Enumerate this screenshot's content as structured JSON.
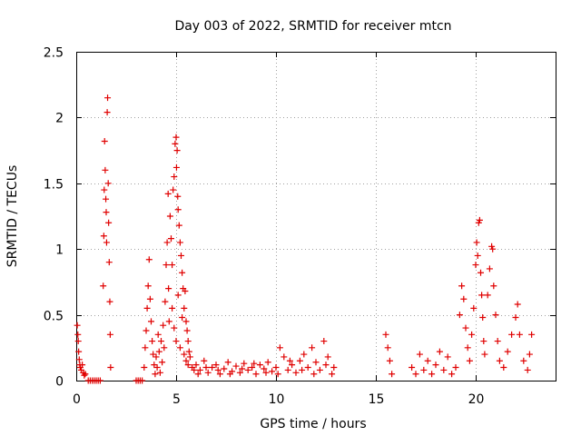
{
  "chart_data": {
    "type": "scatter",
    "title": "Day 003 of 2022, SRMTID for receiver mtcn",
    "xlabel": "GPS time / hours",
    "ylabel": "SRMTID / TECUs",
    "xlim": [
      0,
      24
    ],
    "ylim": [
      0,
      2.5
    ],
    "x_ticks": [
      0,
      5,
      10,
      15,
      20
    ],
    "x_tick_labels": [
      "0",
      "5",
      "10",
      "15",
      "20"
    ],
    "y_ticks": [
      0,
      0.5,
      1,
      1.5,
      2,
      2.5
    ],
    "y_tick_labels": [
      "0",
      "0.5",
      "1",
      "1.5",
      "2",
      "2.5"
    ],
    "grid": true,
    "marker": "+",
    "color": "#e00000",
    "series": [
      {
        "name": "SRMTID",
        "points": [
          [
            0.05,
            0.42
          ],
          [
            0.08,
            0.35
          ],
          [
            0.1,
            0.3
          ],
          [
            0.12,
            0.22
          ],
          [
            0.15,
            0.16
          ],
          [
            0.18,
            0.12
          ],
          [
            0.2,
            0.1
          ],
          [
            0.25,
            0.08
          ],
          [
            0.3,
            0.12
          ],
          [
            0.35,
            0.06
          ],
          [
            0.4,
            0.04
          ],
          [
            0.45,
            0.05
          ],
          [
            0.6,
            0.0
          ],
          [
            0.7,
            0.0
          ],
          [
            0.8,
            0.0
          ],
          [
            0.9,
            0.0
          ],
          [
            1.0,
            0.0
          ],
          [
            1.1,
            0.0
          ],
          [
            1.2,
            0.0
          ],
          [
            1.35,
            0.72
          ],
          [
            1.38,
            1.1
          ],
          [
            1.4,
            1.45
          ],
          [
            1.42,
            1.82
          ],
          [
            1.45,
            1.6
          ],
          [
            1.48,
            1.38
          ],
          [
            1.5,
            1.28
          ],
          [
            1.52,
            1.05
          ],
          [
            1.55,
            2.04
          ],
          [
            1.57,
            2.15
          ],
          [
            1.6,
            1.5
          ],
          [
            1.62,
            1.2
          ],
          [
            1.65,
            0.9
          ],
          [
            1.68,
            0.6
          ],
          [
            1.7,
            0.35
          ],
          [
            1.72,
            0.1
          ],
          [
            3.0,
            0.0
          ],
          [
            3.1,
            0.0
          ],
          [
            3.2,
            0.0
          ],
          [
            3.3,
            0.0
          ],
          [
            3.4,
            0.1
          ],
          [
            3.45,
            0.25
          ],
          [
            3.5,
            0.38
          ],
          [
            3.55,
            0.55
          ],
          [
            3.6,
            0.72
          ],
          [
            3.65,
            0.92
          ],
          [
            3.7,
            0.62
          ],
          [
            3.75,
            0.45
          ],
          [
            3.8,
            0.3
          ],
          [
            3.85,
            0.2
          ],
          [
            3.9,
            0.12
          ],
          [
            3.95,
            0.05
          ],
          [
            4.0,
            0.18
          ],
          [
            4.05,
            0.1
          ],
          [
            4.1,
            0.35
          ],
          [
            4.15,
            0.22
          ],
          [
            4.2,
            0.06
          ],
          [
            4.25,
            0.3
          ],
          [
            4.3,
            0.14
          ],
          [
            4.35,
            0.42
          ],
          [
            4.4,
            0.25
          ],
          [
            4.45,
            0.6
          ],
          [
            4.5,
            0.88
          ],
          [
            4.55,
            1.05
          ],
          [
            4.6,
            1.42
          ],
          [
            4.62,
            0.7
          ],
          [
            4.65,
            0.45
          ],
          [
            4.7,
            1.25
          ],
          [
            4.75,
            1.08
          ],
          [
            4.8,
            0.88
          ],
          [
            4.85,
            1.45
          ],
          [
            4.9,
            1.55
          ],
          [
            4.95,
            1.8
          ],
          [
            5.0,
            1.85
          ],
          [
            5.02,
            1.62
          ],
          [
            5.05,
            1.75
          ],
          [
            5.08,
            1.4
          ],
          [
            5.1,
            1.3
          ],
          [
            5.15,
            1.18
          ],
          [
            5.2,
            1.05
          ],
          [
            5.25,
            0.95
          ],
          [
            5.3,
            0.82
          ],
          [
            5.35,
            0.7
          ],
          [
            5.4,
            0.55
          ],
          [
            5.45,
            0.68
          ],
          [
            5.5,
            0.45
          ],
          [
            5.55,
            0.38
          ],
          [
            5.6,
            0.3
          ],
          [
            5.65,
            0.22
          ],
          [
            4.8,
            0.55
          ],
          [
            4.9,
            0.4
          ],
          [
            5.0,
            0.3
          ],
          [
            5.1,
            0.65
          ],
          [
            5.2,
            0.25
          ],
          [
            5.3,
            0.48
          ],
          [
            5.4,
            0.2
          ],
          [
            5.5,
            0.15
          ],
          [
            5.6,
            0.12
          ],
          [
            5.7,
            0.18
          ],
          [
            5.8,
            0.1
          ],
          [
            5.9,
            0.08
          ],
          [
            6.0,
            0.12
          ],
          [
            6.2,
            0.08
          ],
          [
            6.4,
            0.15
          ],
          [
            6.6,
            0.06
          ],
          [
            6.8,
            0.1
          ],
          [
            7.0,
            0.12
          ],
          [
            7.2,
            0.05
          ],
          [
            7.4,
            0.09
          ],
          [
            7.6,
            0.14
          ],
          [
            7.8,
            0.07
          ],
          [
            8.0,
            0.11
          ],
          [
            8.2,
            0.06
          ],
          [
            8.4,
            0.13
          ],
          [
            8.6,
            0.08
          ],
          [
            8.8,
            0.1
          ],
          [
            9.0,
            0.05
          ],
          [
            9.2,
            0.12
          ],
          [
            9.4,
            0.09
          ],
          [
            9.6,
            0.14
          ],
          [
            9.8,
            0.07
          ],
          [
            10.0,
            0.1
          ],
          [
            10.2,
            0.25
          ],
          [
            10.4,
            0.18
          ],
          [
            10.6,
            0.08
          ],
          [
            10.8,
            0.12
          ],
          [
            11.0,
            0.06
          ],
          [
            11.2,
            0.15
          ],
          [
            11.4,
            0.2
          ],
          [
            11.6,
            0.1
          ],
          [
            11.8,
            0.25
          ],
          [
            12.0,
            0.14
          ],
          [
            12.2,
            0.08
          ],
          [
            12.4,
            0.3
          ],
          [
            12.6,
            0.18
          ],
          [
            12.8,
            0.05
          ],
          [
            12.9,
            0.1
          ],
          [
            6.1,
            0.05
          ],
          [
            6.5,
            0.1
          ],
          [
            7.1,
            0.08
          ],
          [
            7.7,
            0.05
          ],
          [
            8.3,
            0.09
          ],
          [
            8.9,
            0.13
          ],
          [
            9.5,
            0.06
          ],
          [
            10.1,
            0.05
          ],
          [
            10.7,
            0.15
          ],
          [
            11.3,
            0.08
          ],
          [
            11.9,
            0.05
          ],
          [
            12.5,
            0.12
          ],
          [
            15.5,
            0.35
          ],
          [
            15.6,
            0.25
          ],
          [
            15.7,
            0.15
          ],
          [
            15.8,
            0.05
          ],
          [
            16.8,
            0.1
          ],
          [
            17.0,
            0.05
          ],
          [
            17.2,
            0.2
          ],
          [
            17.4,
            0.08
          ],
          [
            17.6,
            0.15
          ],
          [
            17.8,
            0.05
          ],
          [
            18.0,
            0.12
          ],
          [
            18.2,
            0.22
          ],
          [
            18.4,
            0.08
          ],
          [
            18.6,
            0.18
          ],
          [
            18.8,
            0.05
          ],
          [
            19.0,
            0.1
          ],
          [
            19.2,
            0.5
          ],
          [
            19.3,
            0.72
          ],
          [
            19.4,
            0.62
          ],
          [
            19.5,
            0.4
          ],
          [
            19.6,
            0.25
          ],
          [
            19.7,
            0.15
          ],
          [
            19.8,
            0.35
          ],
          [
            19.9,
            0.55
          ],
          [
            20.0,
            0.88
          ],
          [
            20.05,
            1.05
          ],
          [
            20.1,
            0.95
          ],
          [
            20.15,
            1.2
          ],
          [
            20.2,
            1.22
          ],
          [
            20.25,
            0.82
          ],
          [
            20.3,
            0.65
          ],
          [
            20.35,
            0.48
          ],
          [
            20.4,
            0.3
          ],
          [
            20.45,
            0.2
          ],
          [
            20.6,
            0.65
          ],
          [
            20.7,
            0.85
          ],
          [
            20.8,
            1.02
          ],
          [
            20.85,
            1.0
          ],
          [
            20.9,
            0.72
          ],
          [
            21.0,
            0.5
          ],
          [
            21.1,
            0.3
          ],
          [
            21.2,
            0.15
          ],
          [
            21.4,
            0.1
          ],
          [
            21.6,
            0.22
          ],
          [
            21.8,
            0.35
          ],
          [
            22.0,
            0.48
          ],
          [
            22.1,
            0.58
          ],
          [
            22.2,
            0.35
          ],
          [
            22.4,
            0.15
          ],
          [
            22.6,
            0.08
          ],
          [
            22.7,
            0.2
          ],
          [
            22.8,
            0.35
          ]
        ]
      }
    ]
  }
}
